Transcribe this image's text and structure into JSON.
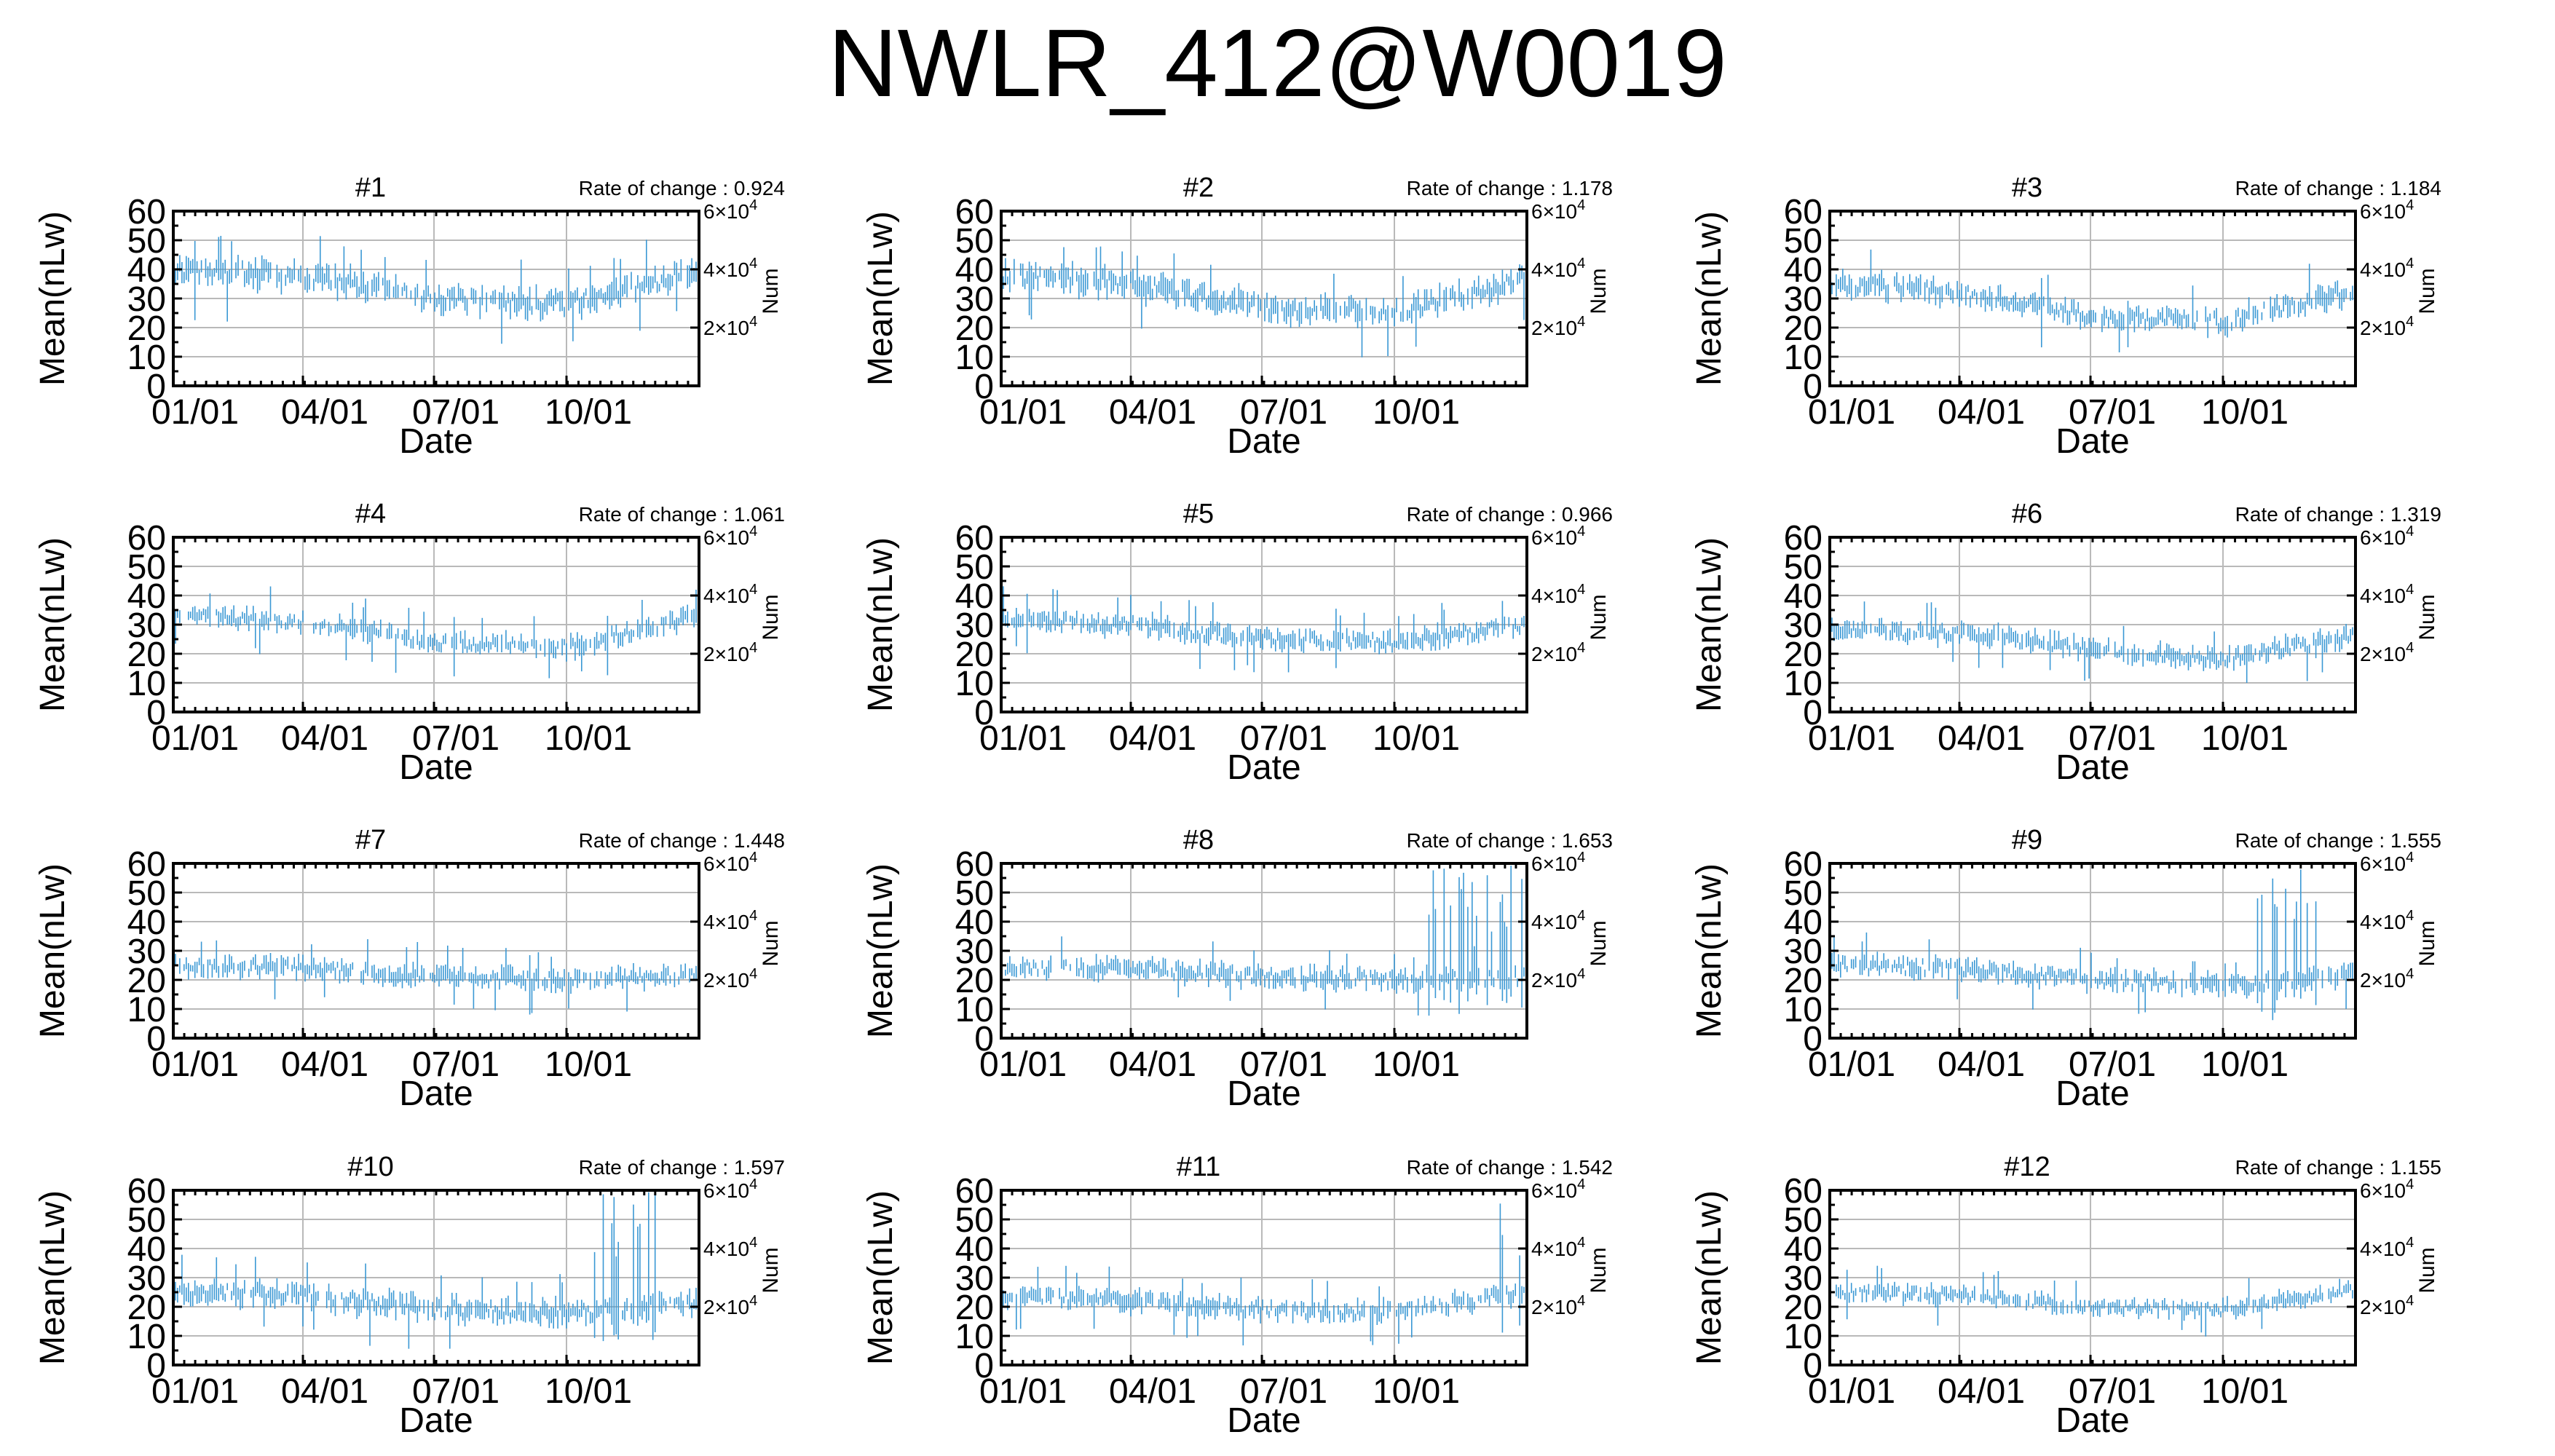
{
  "title": "NWLR_412@W0019",
  "chart_data": {
    "type": "errorbar-timeseries",
    "xlabel": "Date",
    "ylabel": "Mean(nLw)",
    "y2label": "Num",
    "x_ticks": [
      "01/01",
      "04/01",
      "07/01",
      "10/01"
    ],
    "x_tick_days": [
      0,
      90,
      181,
      273
    ],
    "x_range_days": [
      0,
      365
    ],
    "y_ticks": [
      0,
      10,
      20,
      30,
      40,
      50,
      60
    ],
    "ylim": [
      0,
      60
    ],
    "y2_ticks": [
      {
        "value": 20000,
        "base": "2×10",
        "exp": "4"
      },
      {
        "value": 40000,
        "base": "4×10",
        "exp": "4"
      },
      {
        "value": 60000,
        "base": "6×10",
        "exp": "4"
      }
    ],
    "y2lim": [
      0,
      60000
    ],
    "grid": true,
    "series_color": "#3a98d4",
    "panels": [
      {
        "title": "#1",
        "rate_label": "Rate of change : 0.924",
        "level": [
          40,
          38,
          30,
          28,
          40
        ],
        "spread": 8
      },
      {
        "title": "#2",
        "rate_label": "Rate of change : 1.178",
        "level": [
          38,
          35,
          27,
          25,
          37
        ],
        "spread": 8
      },
      {
        "title": "#3",
        "rate_label": "Rate of change : 1.184",
        "level": [
          35,
          32,
          24,
          22,
          33
        ],
        "spread": 7
      },
      {
        "title": "#4",
        "rate_label": "Rate of change : 1.061",
        "level": [
          33,
          31,
          24,
          22,
          33
        ],
        "spread": 6
      },
      {
        "title": "#5",
        "rate_label": "Rate of change : 0.966",
        "level": [
          32,
          30,
          25,
          24,
          30
        ],
        "spread": 6
      },
      {
        "title": "#6",
        "rate_label": "Rate of change : 1.319",
        "level": [
          28,
          27,
          22,
          18,
          26
        ],
        "spread": 6
      },
      {
        "title": "#7",
        "rate_label": "Rate of change : 1.448",
        "level": [
          25,
          24,
          21,
          20,
          22
        ],
        "spread": 6
      },
      {
        "title": "#8",
        "rate_label": "Rate of change : 1.653",
        "level": [
          24,
          24,
          21,
          20,
          21
        ],
        "spread": 6,
        "burst": {
          "from": 292,
          "to": 365,
          "top": 60
        }
      },
      {
        "title": "#9",
        "rate_label": "Rate of change : 1.555",
        "level": [
          25,
          24,
          20,
          18,
          22
        ],
        "spread": 6,
        "burst": {
          "from": 295,
          "to": 340,
          "top": 60
        }
      },
      {
        "title": "#10",
        "rate_label": "Rate of change : 1.597",
        "level": [
          25,
          24,
          19,
          18,
          21
        ],
        "spread": 7,
        "burst": {
          "from": 290,
          "to": 340,
          "top": 60
        }
      },
      {
        "title": "#11",
        "rate_label": "Rate of change : 1.542",
        "level": [
          23,
          22,
          19,
          18,
          25
        ],
        "spread": 6,
        "burst": {
          "from": 335,
          "to": 365,
          "top": 60
        }
      },
      {
        "title": "#12",
        "rate_label": "Rate of change : 1.155",
        "level": [
          25,
          24,
          20,
          19,
          26
        ],
        "spread": 5
      }
    ]
  }
}
